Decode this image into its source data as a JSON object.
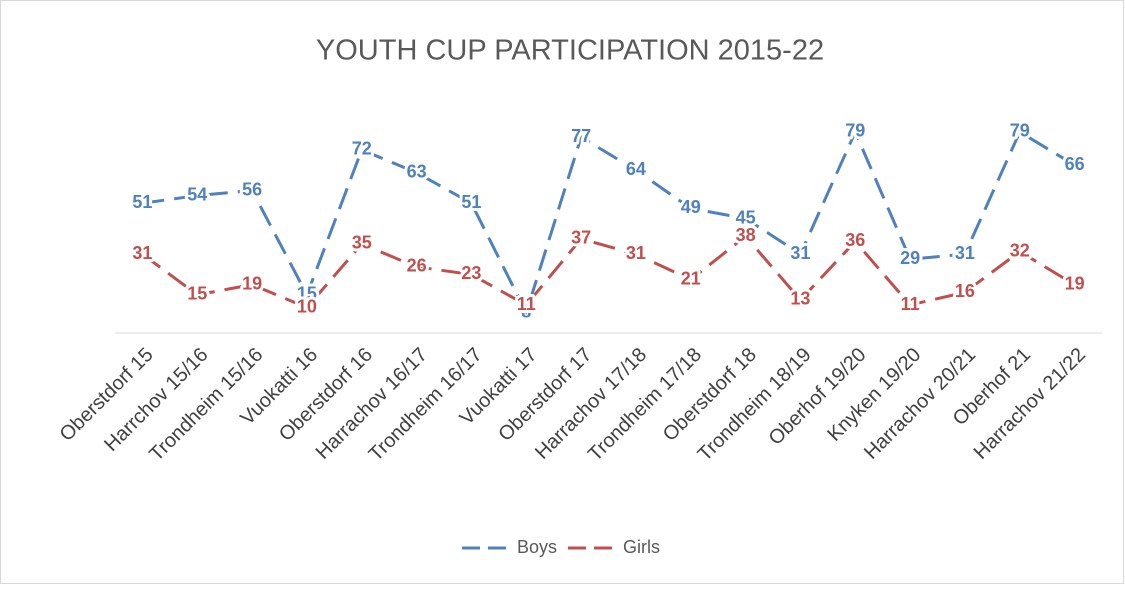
{
  "chart_data": {
    "type": "line",
    "title": "YOUTH CUP PARTICIPATION 2015-22",
    "categories": [
      "Oberstdorf 15",
      "Harrchov 15/16",
      "Trondheim 15/16",
      "Vuokatti 16",
      "Oberstdorf 16",
      "Harrachov 16/17",
      "Trondheim 16/17",
      "Vuokatti 17",
      "Oberstdorf 17",
      "Harrachov 17/18",
      "Trondheim 17/18",
      "Oberstdorf 18",
      "Trondheim 18/19",
      "Oberhof 19/20",
      "Knyken 19/20",
      "Harrachov 20/21",
      "Oberhof 21",
      "Harrachov 21/22"
    ],
    "series": [
      {
        "name": "Boys",
        "color": "#4f81bd",
        "values": [
          51,
          54,
          56,
          15,
          72,
          63,
          51,
          8,
          77,
          64,
          49,
          45,
          31,
          79,
          29,
          31,
          79,
          66
        ]
      },
      {
        "name": "Girls",
        "color": "#c0504d",
        "values": [
          31,
          15,
          19,
          10,
          35,
          26,
          23,
          11,
          37,
          31,
          21,
          38,
          13,
          36,
          11,
          16,
          32,
          19
        ]
      }
    ],
    "ylim": [
      0,
      90
    ],
    "legend": "bottom"
  }
}
